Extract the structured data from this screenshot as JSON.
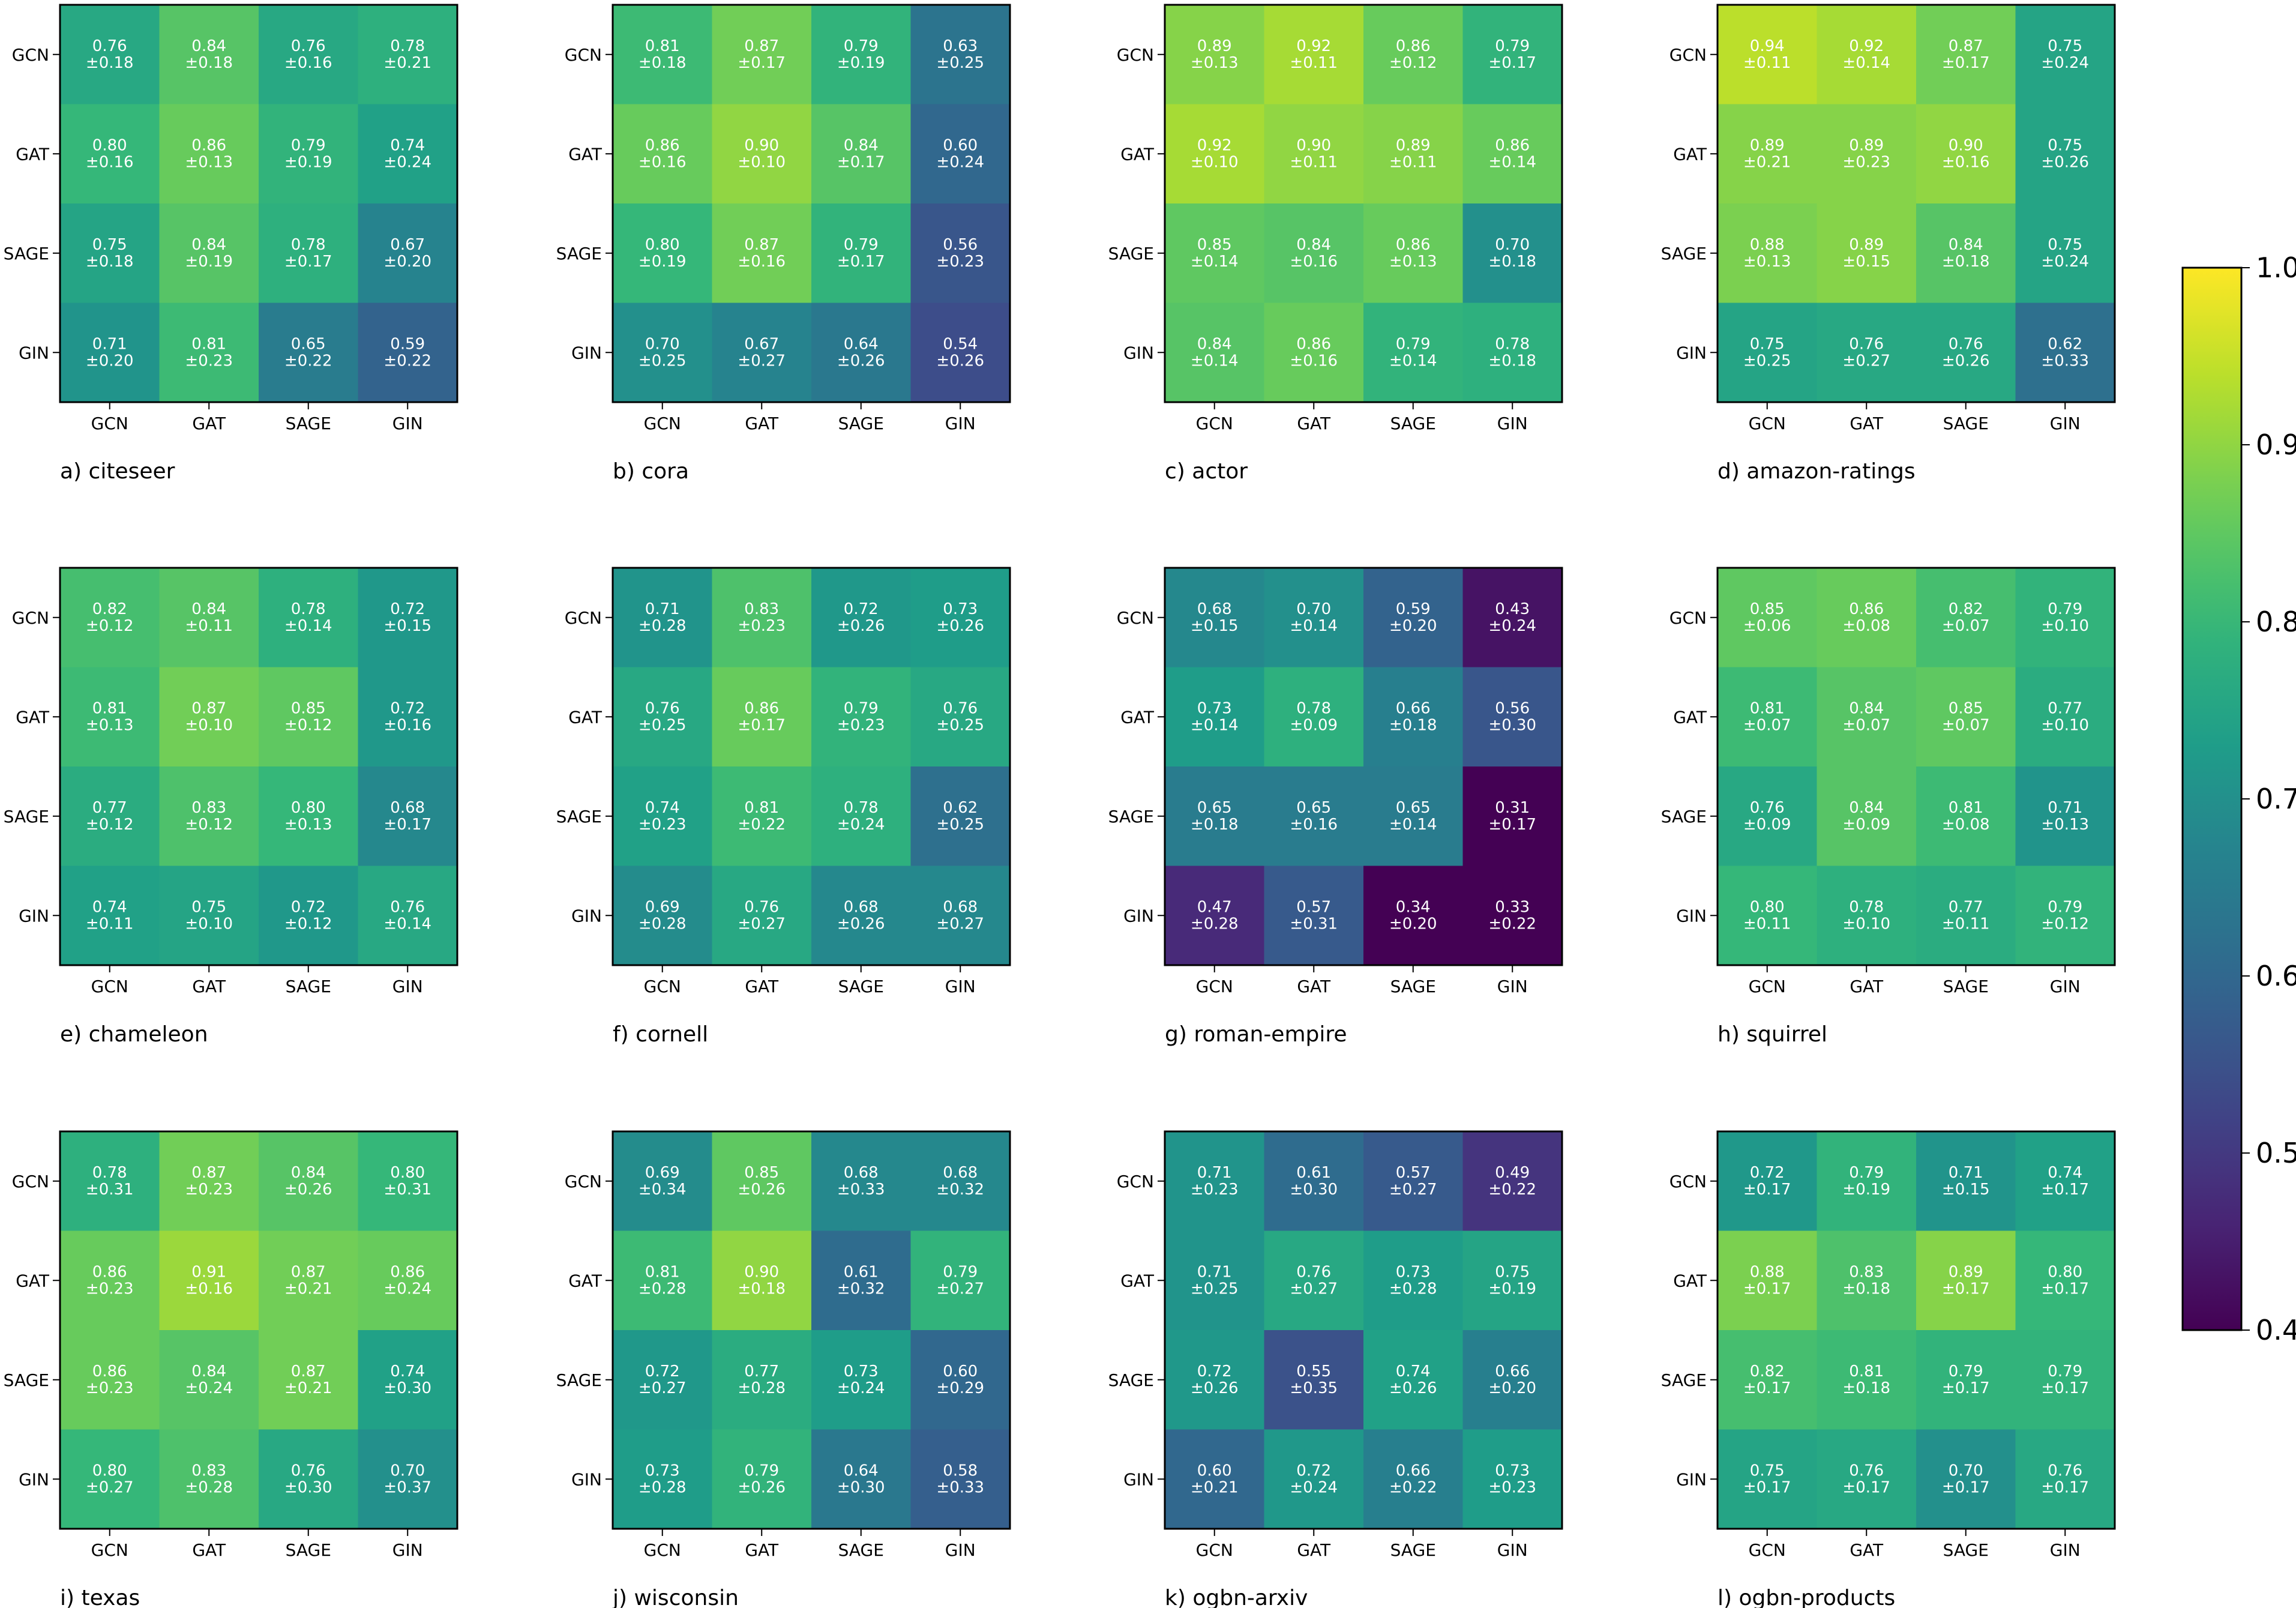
{
  "chart_data": {
    "type": "heatmap",
    "colormap": "viridis",
    "row_labels": [
      "GCN",
      "GAT",
      "SAGE",
      "GIN"
    ],
    "col_labels": [
      "GCN",
      "GAT",
      "SAGE",
      "GIN"
    ],
    "vmin": 0.4,
    "vmax": 1.0,
    "colorbar": {
      "ticks": [
        "0.4",
        "0.5",
        "0.6",
        "0.7",
        "0.8",
        "0.9",
        "1.0"
      ]
    },
    "panels": [
      {
        "title": "a) citeseer",
        "means": [
          [
            "0.76",
            "0.84",
            "0.76",
            "0.78"
          ],
          [
            "0.80",
            "0.86",
            "0.79",
            "0.74"
          ],
          [
            "0.75",
            "0.84",
            "0.78",
            "0.67"
          ],
          [
            "0.71",
            "0.81",
            "0.65",
            "0.59"
          ]
        ],
        "stds": [
          [
            "±0.18",
            "±0.18",
            "±0.16",
            "±0.21"
          ],
          [
            "±0.16",
            "±0.13",
            "±0.19",
            "±0.24"
          ],
          [
            "±0.18",
            "±0.19",
            "±0.17",
            "±0.20"
          ],
          [
            "±0.20",
            "±0.23",
            "±0.22",
            "±0.22"
          ]
        ]
      },
      {
        "title": "b) cora",
        "means": [
          [
            "0.81",
            "0.87",
            "0.79",
            "0.63"
          ],
          [
            "0.86",
            "0.90",
            "0.84",
            "0.60"
          ],
          [
            "0.80",
            "0.87",
            "0.79",
            "0.56"
          ],
          [
            "0.70",
            "0.67",
            "0.64",
            "0.54"
          ]
        ],
        "stds": [
          [
            "±0.18",
            "±0.17",
            "±0.19",
            "±0.25"
          ],
          [
            "±0.16",
            "±0.10",
            "±0.17",
            "±0.24"
          ],
          [
            "±0.19",
            "±0.16",
            "±0.17",
            "±0.23"
          ],
          [
            "±0.25",
            "±0.27",
            "±0.26",
            "±0.26"
          ]
        ]
      },
      {
        "title": "c) actor",
        "means": [
          [
            "0.89",
            "0.92",
            "0.86",
            "0.79"
          ],
          [
            "0.92",
            "0.90",
            "0.89",
            "0.86"
          ],
          [
            "0.85",
            "0.84",
            "0.86",
            "0.70"
          ],
          [
            "0.84",
            "0.86",
            "0.79",
            "0.78"
          ]
        ],
        "stds": [
          [
            "±0.13",
            "±0.11",
            "±0.12",
            "±0.17"
          ],
          [
            "±0.10",
            "±0.11",
            "±0.11",
            "±0.14"
          ],
          [
            "±0.14",
            "±0.16",
            "±0.13",
            "±0.18"
          ],
          [
            "±0.14",
            "±0.16",
            "±0.14",
            "±0.18"
          ]
        ]
      },
      {
        "title": "d) amazon-ratings",
        "means": [
          [
            "0.94",
            "0.92",
            "0.87",
            "0.75"
          ],
          [
            "0.89",
            "0.89",
            "0.90",
            "0.75"
          ],
          [
            "0.88",
            "0.89",
            "0.84",
            "0.75"
          ],
          [
            "0.75",
            "0.76",
            "0.76",
            "0.62"
          ]
        ],
        "stds": [
          [
            "±0.11",
            "±0.14",
            "±0.17",
            "±0.24"
          ],
          [
            "±0.21",
            "±0.23",
            "±0.16",
            "±0.26"
          ],
          [
            "±0.13",
            "±0.15",
            "±0.18",
            "±0.24"
          ],
          [
            "±0.25",
            "±0.27",
            "±0.26",
            "±0.33"
          ]
        ]
      },
      {
        "title": "e) chameleon",
        "means": [
          [
            "0.82",
            "0.84",
            "0.78",
            "0.72"
          ],
          [
            "0.81",
            "0.87",
            "0.85",
            "0.72"
          ],
          [
            "0.77",
            "0.83",
            "0.80",
            "0.68"
          ],
          [
            "0.74",
            "0.75",
            "0.72",
            "0.76"
          ]
        ],
        "stds": [
          [
            "±0.12",
            "±0.11",
            "±0.14",
            "±0.15"
          ],
          [
            "±0.13",
            "±0.10",
            "±0.12",
            "±0.16"
          ],
          [
            "±0.12",
            "±0.12",
            "±0.13",
            "±0.17"
          ],
          [
            "±0.11",
            "±0.10",
            "±0.12",
            "±0.14"
          ]
        ]
      },
      {
        "title": "f) cornell",
        "means": [
          [
            "0.71",
            "0.83",
            "0.72",
            "0.73"
          ],
          [
            "0.76",
            "0.86",
            "0.79",
            "0.76"
          ],
          [
            "0.74",
            "0.81",
            "0.78",
            "0.62"
          ],
          [
            "0.69",
            "0.76",
            "0.68",
            "0.68"
          ]
        ],
        "stds": [
          [
            "±0.28",
            "±0.23",
            "±0.26",
            "±0.26"
          ],
          [
            "±0.25",
            "±0.17",
            "±0.23",
            "±0.25"
          ],
          [
            "±0.23",
            "±0.22",
            "±0.24",
            "±0.25"
          ],
          [
            "±0.28",
            "±0.27",
            "±0.26",
            "±0.27"
          ]
        ]
      },
      {
        "title": "g) roman-empire",
        "means": [
          [
            "0.68",
            "0.70",
            "0.59",
            "0.43"
          ],
          [
            "0.73",
            "0.78",
            "0.66",
            "0.56"
          ],
          [
            "0.65",
            "0.65",
            "0.65",
            "0.31"
          ],
          [
            "0.47",
            "0.57",
            "0.34",
            "0.33"
          ]
        ],
        "stds": [
          [
            "±0.15",
            "±0.14",
            "±0.20",
            "±0.24"
          ],
          [
            "±0.14",
            "±0.09",
            "±0.18",
            "±0.30"
          ],
          [
            "±0.18",
            "±0.16",
            "±0.14",
            "±0.17"
          ],
          [
            "±0.28",
            "±0.31",
            "±0.20",
            "±0.22"
          ]
        ]
      },
      {
        "title": "h) squirrel",
        "means": [
          [
            "0.85",
            "0.86",
            "0.82",
            "0.79"
          ],
          [
            "0.81",
            "0.84",
            "0.85",
            "0.77"
          ],
          [
            "0.76",
            "0.84",
            "0.81",
            "0.71"
          ],
          [
            "0.80",
            "0.78",
            "0.77",
            "0.79"
          ]
        ],
        "stds": [
          [
            "±0.06",
            "±0.08",
            "±0.07",
            "±0.10"
          ],
          [
            "±0.07",
            "±0.07",
            "±0.07",
            "±0.10"
          ],
          [
            "±0.09",
            "±0.09",
            "±0.08",
            "±0.13"
          ],
          [
            "±0.11",
            "±0.10",
            "±0.11",
            "±0.12"
          ]
        ]
      },
      {
        "title": "i) texas",
        "means": [
          [
            "0.78",
            "0.87",
            "0.84",
            "0.80"
          ],
          [
            "0.86",
            "0.91",
            "0.87",
            "0.86"
          ],
          [
            "0.86",
            "0.84",
            "0.87",
            "0.74"
          ],
          [
            "0.80",
            "0.83",
            "0.76",
            "0.70"
          ]
        ],
        "stds": [
          [
            "±0.31",
            "±0.23",
            "±0.26",
            "±0.31"
          ],
          [
            "±0.23",
            "±0.16",
            "±0.21",
            "±0.24"
          ],
          [
            "±0.23",
            "±0.24",
            "±0.21",
            "±0.30"
          ],
          [
            "±0.27",
            "±0.28",
            "±0.30",
            "±0.37"
          ]
        ]
      },
      {
        "title": "j) wisconsin",
        "means": [
          [
            "0.69",
            "0.85",
            "0.68",
            "0.68"
          ],
          [
            "0.81",
            "0.90",
            "0.61",
            "0.79"
          ],
          [
            "0.72",
            "0.77",
            "0.73",
            "0.60"
          ],
          [
            "0.73",
            "0.79",
            "0.64",
            "0.58"
          ]
        ],
        "stds": [
          [
            "±0.34",
            "±0.26",
            "±0.33",
            "±0.32"
          ],
          [
            "±0.28",
            "±0.18",
            "±0.32",
            "±0.27"
          ],
          [
            "±0.27",
            "±0.28",
            "±0.24",
            "±0.29"
          ],
          [
            "±0.28",
            "±0.26",
            "±0.30",
            "±0.33"
          ]
        ]
      },
      {
        "title": "k) ogbn-arxiv",
        "means": [
          [
            "0.71",
            "0.61",
            "0.57",
            "0.49"
          ],
          [
            "0.71",
            "0.76",
            "0.73",
            "0.75"
          ],
          [
            "0.72",
            "0.55",
            "0.74",
            "0.66"
          ],
          [
            "0.60",
            "0.72",
            "0.66",
            "0.73"
          ]
        ],
        "stds": [
          [
            "±0.23",
            "±0.30",
            "±0.27",
            "±0.22"
          ],
          [
            "±0.25",
            "±0.27",
            "±0.28",
            "±0.19"
          ],
          [
            "±0.26",
            "±0.35",
            "±0.26",
            "±0.20"
          ],
          [
            "±0.21",
            "±0.24",
            "±0.22",
            "±0.23"
          ]
        ]
      },
      {
        "title": "l) ogbn-products",
        "means": [
          [
            "0.72",
            "0.79",
            "0.71",
            "0.74"
          ],
          [
            "0.88",
            "0.83",
            "0.89",
            "0.80"
          ],
          [
            "0.82",
            "0.81",
            "0.79",
            "0.79"
          ],
          [
            "0.75",
            "0.76",
            "0.70",
            "0.76"
          ]
        ],
        "stds": [
          [
            "±0.17",
            "±0.19",
            "±0.15",
            "±0.17"
          ],
          [
            "±0.17",
            "±0.18",
            "±0.17",
            "±0.17"
          ],
          [
            "±0.17",
            "±0.18",
            "±0.17",
            "±0.17"
          ],
          [
            "±0.17",
            "±0.17",
            "±0.17",
            "±0.17"
          ]
        ]
      }
    ]
  }
}
